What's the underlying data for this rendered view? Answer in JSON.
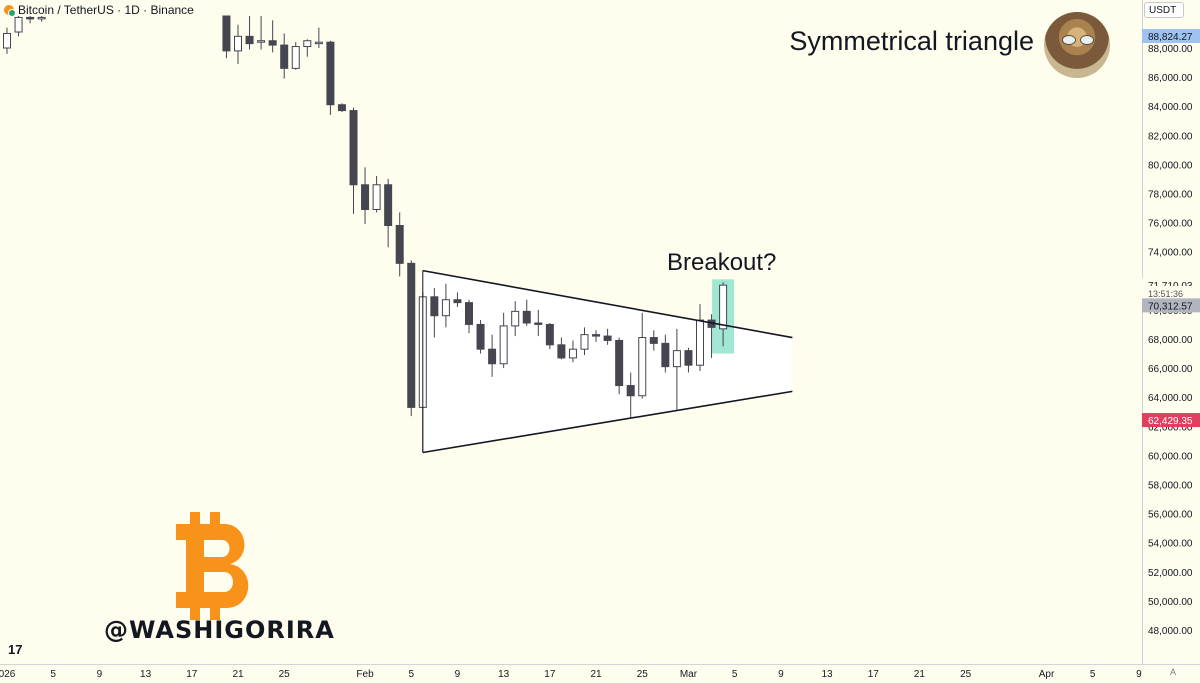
{
  "header": {
    "symbol": "Bitcoin / TetherUS · 1D · Binance",
    "icon": "bitcoin-tether-pair-icon"
  },
  "currency": "USDT",
  "annotations": {
    "title": "Symmetrical triangle",
    "breakout": "Breakout?",
    "handle": "@WASHIGORIRA",
    "tradingview_mark": "17"
  },
  "colors": {
    "background": "#fefdee",
    "down_candle": "#454650",
    "up_candle": "#ffffff",
    "candle_outline": "#454650",
    "highlight": "#8fe3cc",
    "price_tag_blue": "#9ec3f0",
    "price_tag_red": "#e0405f",
    "price_tag_gray": "#b2b5be",
    "btc_orange": "#f7931a"
  },
  "price_axis": {
    "ticks": [
      "88,000.00",
      "86,000.00",
      "84,000.00",
      "82,000.00",
      "80,000.00",
      "78,000.00",
      "76,000.00",
      "74,000.00",
      "72,000.00",
      "70,000.00",
      "68,000.00",
      "66,000.00",
      "64,000.00",
      "62,000.00",
      "60,000.00",
      "58,000.00",
      "56,000.00",
      "54,000.00",
      "52,000.00",
      "50,000.00",
      "48,000.00"
    ],
    "tags": [
      {
        "label": "88,824.27",
        "value": 88824.27,
        "kind": "blue"
      },
      {
        "label": "71,710.03",
        "value": 71710.03,
        "kind": "plain"
      },
      {
        "label": "13:51:36",
        "value": 71160,
        "kind": "plain-small"
      },
      {
        "label": "70,312.57",
        "value": 70312.57,
        "kind": "gray"
      },
      {
        "label": "62,429.35",
        "value": 62429.35,
        "kind": "red"
      }
    ],
    "auto_label": "A"
  },
  "time_axis": {
    "labels": [
      {
        "day": 0,
        "text": "026"
      },
      {
        "day": 4,
        "text": "5"
      },
      {
        "day": 8,
        "text": "9"
      },
      {
        "day": 12,
        "text": "13"
      },
      {
        "day": 16,
        "text": "17"
      },
      {
        "day": 20,
        "text": "21"
      },
      {
        "day": 24,
        "text": "25"
      },
      {
        "day": 31,
        "text": "Feb"
      },
      {
        "day": 35,
        "text": "5"
      },
      {
        "day": 39,
        "text": "9"
      },
      {
        "day": 43,
        "text": "13"
      },
      {
        "day": 47,
        "text": "17"
      },
      {
        "day": 51,
        "text": "21"
      },
      {
        "day": 55,
        "text": "25"
      },
      {
        "day": 59,
        "text": "Mar"
      },
      {
        "day": 63,
        "text": "5"
      },
      {
        "day": 67,
        "text": "9"
      },
      {
        "day": 71,
        "text": "13"
      },
      {
        "day": 75,
        "text": "17"
      },
      {
        "day": 79,
        "text": "21"
      },
      {
        "day": 83,
        "text": "25"
      },
      {
        "day": 90,
        "text": "Apr"
      },
      {
        "day": 94,
        "text": "5"
      },
      {
        "day": 98,
        "text": "9"
      }
    ]
  },
  "chart_data": {
    "type": "candlestick",
    "title": "",
    "x_unit": "days since 2026-01-01",
    "ylim": [
      47000,
      90200
    ],
    "xlim": [
      0,
      98
    ],
    "grid": false,
    "candles": [
      {
        "d": 0,
        "o": 88000,
        "h": 89400,
        "l": 87600,
        "c": 89000
      },
      {
        "d": 1,
        "o": 89100,
        "h": 90200,
        "l": 88800,
        "c": 90100
      },
      {
        "d": 2,
        "o": 90100,
        "h": 90200,
        "l": 89700,
        "c": 90000
      },
      {
        "d": 3,
        "o": 90000,
        "h": 90200,
        "l": 89800,
        "c": 90100
      },
      {
        "d": 19,
        "o": 90200,
        "h": 90200,
        "l": 87300,
        "c": 87800
      },
      {
        "d": 20,
        "o": 87800,
        "h": 89600,
        "l": 86900,
        "c": 88800
      },
      {
        "d": 21,
        "o": 88800,
        "h": 90200,
        "l": 87900,
        "c": 88300
      },
      {
        "d": 22,
        "o": 88400,
        "h": 90200,
        "l": 87900,
        "c": 88500
      },
      {
        "d": 23,
        "o": 88500,
        "h": 89900,
        "l": 87700,
        "c": 88200
      },
      {
        "d": 24,
        "o": 88200,
        "h": 89000,
        "l": 85900,
        "c": 86600
      },
      {
        "d": 25,
        "o": 86600,
        "h": 88400,
        "l": 86500,
        "c": 88100
      },
      {
        "d": 26,
        "o": 88100,
        "h": 88600,
        "l": 87400,
        "c": 88500
      },
      {
        "d": 27,
        "o": 88300,
        "h": 89400,
        "l": 88000,
        "c": 88400
      },
      {
        "d": 28,
        "o": 88400,
        "h": 88500,
        "l": 83400,
        "c": 84100
      },
      {
        "d": 29,
        "o": 84100,
        "h": 84200,
        "l": 83600,
        "c": 83700
      },
      {
        "d": 30,
        "o": 83700,
        "h": 83900,
        "l": 76600,
        "c": 78600
      },
      {
        "d": 31,
        "o": 78600,
        "h": 79800,
        "l": 75900,
        "c": 76900
      },
      {
        "d": 32,
        "o": 76900,
        "h": 79200,
        "l": 76700,
        "c": 78600
      },
      {
        "d": 33,
        "o": 78600,
        "h": 79000,
        "l": 74300,
        "c": 75800
      },
      {
        "d": 34,
        "o": 75800,
        "h": 76700,
        "l": 72300,
        "c": 73200
      },
      {
        "d": 35,
        "o": 73200,
        "h": 73400,
        "l": 62700,
        "c": 63300
      },
      {
        "d": 36,
        "o": 63300,
        "h": 71200,
        "l": 60200,
        "c": 70900
      },
      {
        "d": 37,
        "o": 70900,
        "h": 71500,
        "l": 68100,
        "c": 69600
      },
      {
        "d": 38,
        "o": 69600,
        "h": 71800,
        "l": 68800,
        "c": 70700
      },
      {
        "d": 39,
        "o": 70700,
        "h": 71200,
        "l": 70200,
        "c": 70500
      },
      {
        "d": 40,
        "o": 70500,
        "h": 70700,
        "l": 68400,
        "c": 69000
      },
      {
        "d": 41,
        "o": 69000,
        "h": 69300,
        "l": 67000,
        "c": 67300
      },
      {
        "d": 42,
        "o": 67300,
        "h": 68300,
        "l": 65400,
        "c": 66300
      },
      {
        "d": 43,
        "o": 66300,
        "h": 69800,
        "l": 66000,
        "c": 68900
      },
      {
        "d": 44,
        "o": 68900,
        "h": 70600,
        "l": 68200,
        "c": 69900
      },
      {
        "d": 45,
        "o": 69900,
        "h": 70700,
        "l": 68900,
        "c": 69100
      },
      {
        "d": 46,
        "o": 69100,
        "h": 70000,
        "l": 68200,
        "c": 69000
      },
      {
        "d": 47,
        "o": 69000,
        "h": 69100,
        "l": 67300,
        "c": 67600
      },
      {
        "d": 48,
        "o": 67600,
        "h": 68100,
        "l": 66600,
        "c": 66700
      },
      {
        "d": 49,
        "o": 66700,
        "h": 67900,
        "l": 66400,
        "c": 67300
      },
      {
        "d": 50,
        "o": 67300,
        "h": 68800,
        "l": 66900,
        "c": 68300
      },
      {
        "d": 51,
        "o": 68300,
        "h": 68600,
        "l": 67800,
        "c": 68200
      },
      {
        "d": 52,
        "o": 68200,
        "h": 68700,
        "l": 67600,
        "c": 67900
      },
      {
        "d": 53,
        "o": 67900,
        "h": 68100,
        "l": 64200,
        "c": 64800
      },
      {
        "d": 54,
        "o": 64800,
        "h": 65700,
        "l": 62600,
        "c": 64100
      },
      {
        "d": 55,
        "o": 64100,
        "h": 69800,
        "l": 63900,
        "c": 68100
      },
      {
        "d": 56,
        "o": 68100,
        "h": 68600,
        "l": 67200,
        "c": 67700
      },
      {
        "d": 57,
        "o": 67700,
        "h": 68300,
        "l": 65700,
        "c": 66100
      },
      {
        "d": 58,
        "o": 66100,
        "h": 68700,
        "l": 63100,
        "c": 67200
      },
      {
        "d": 59,
        "o": 67200,
        "h": 67400,
        "l": 65700,
        "c": 66200
      },
      {
        "d": 60,
        "o": 66200,
        "h": 70400,
        "l": 65800,
        "c": 69300
      },
      {
        "d": 61,
        "o": 69300,
        "h": 69700,
        "l": 66700,
        "c": 68800
      },
      {
        "d": 62,
        "o": 68700,
        "h": 71900,
        "l": 67500,
        "c": 71700
      }
    ],
    "triangle": {
      "upper": {
        "from": {
          "d": 36,
          "p": 72700
        },
        "to": {
          "d": 68,
          "p": 68100
        }
      },
      "lower": {
        "from": {
          "d": 36,
          "p": 60200
        },
        "to": {
          "d": 68,
          "p": 64400
        }
      }
    },
    "breakout_highlight": {
      "d": 62,
      "top": 72100,
      "bottom": 67000
    }
  }
}
